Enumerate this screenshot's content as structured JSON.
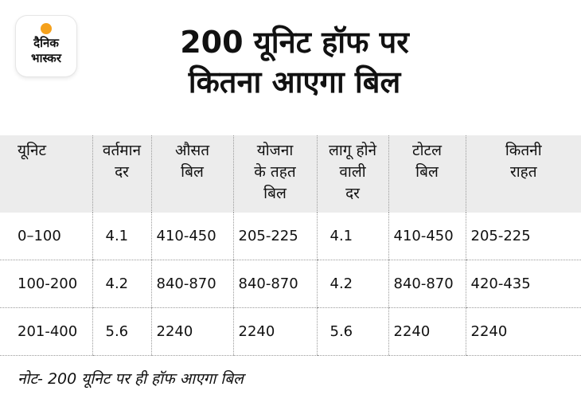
{
  "logo": {
    "line1": "दैनिक",
    "line2": "भास्कर",
    "accent_color": "#f5a11c"
  },
  "title": {
    "line1": "200 यूनिट हॉफ पर",
    "line2": "कितना आएगा बिल"
  },
  "table": {
    "headers": [
      [
        "यूनिट"
      ],
      [
        "वर्तमान",
        "दर"
      ],
      [
        "औसत",
        "बिल"
      ],
      [
        "योजना",
        "के तहत",
        "बिल"
      ],
      [
        "लागू होने",
        "वाली",
        "दर"
      ],
      [
        "टोटल",
        "बिल"
      ],
      [
        "कितनी",
        "राहत"
      ]
    ],
    "rows": [
      [
        "0–100",
        "4.1",
        "410-450",
        "205-225",
        "4.1",
        "410-450",
        "205-225"
      ],
      [
        "100-200",
        "4.2",
        "840-870",
        "840-870",
        "4.2",
        "840-870",
        "420-435"
      ],
      [
        "201-400",
        "5.6",
        "2240",
        "2240",
        "5.6",
        "2240",
        "2240"
      ]
    ]
  },
  "note": "नोट- 200 यूनिट पर ही हॉफ आएगा बिल"
}
